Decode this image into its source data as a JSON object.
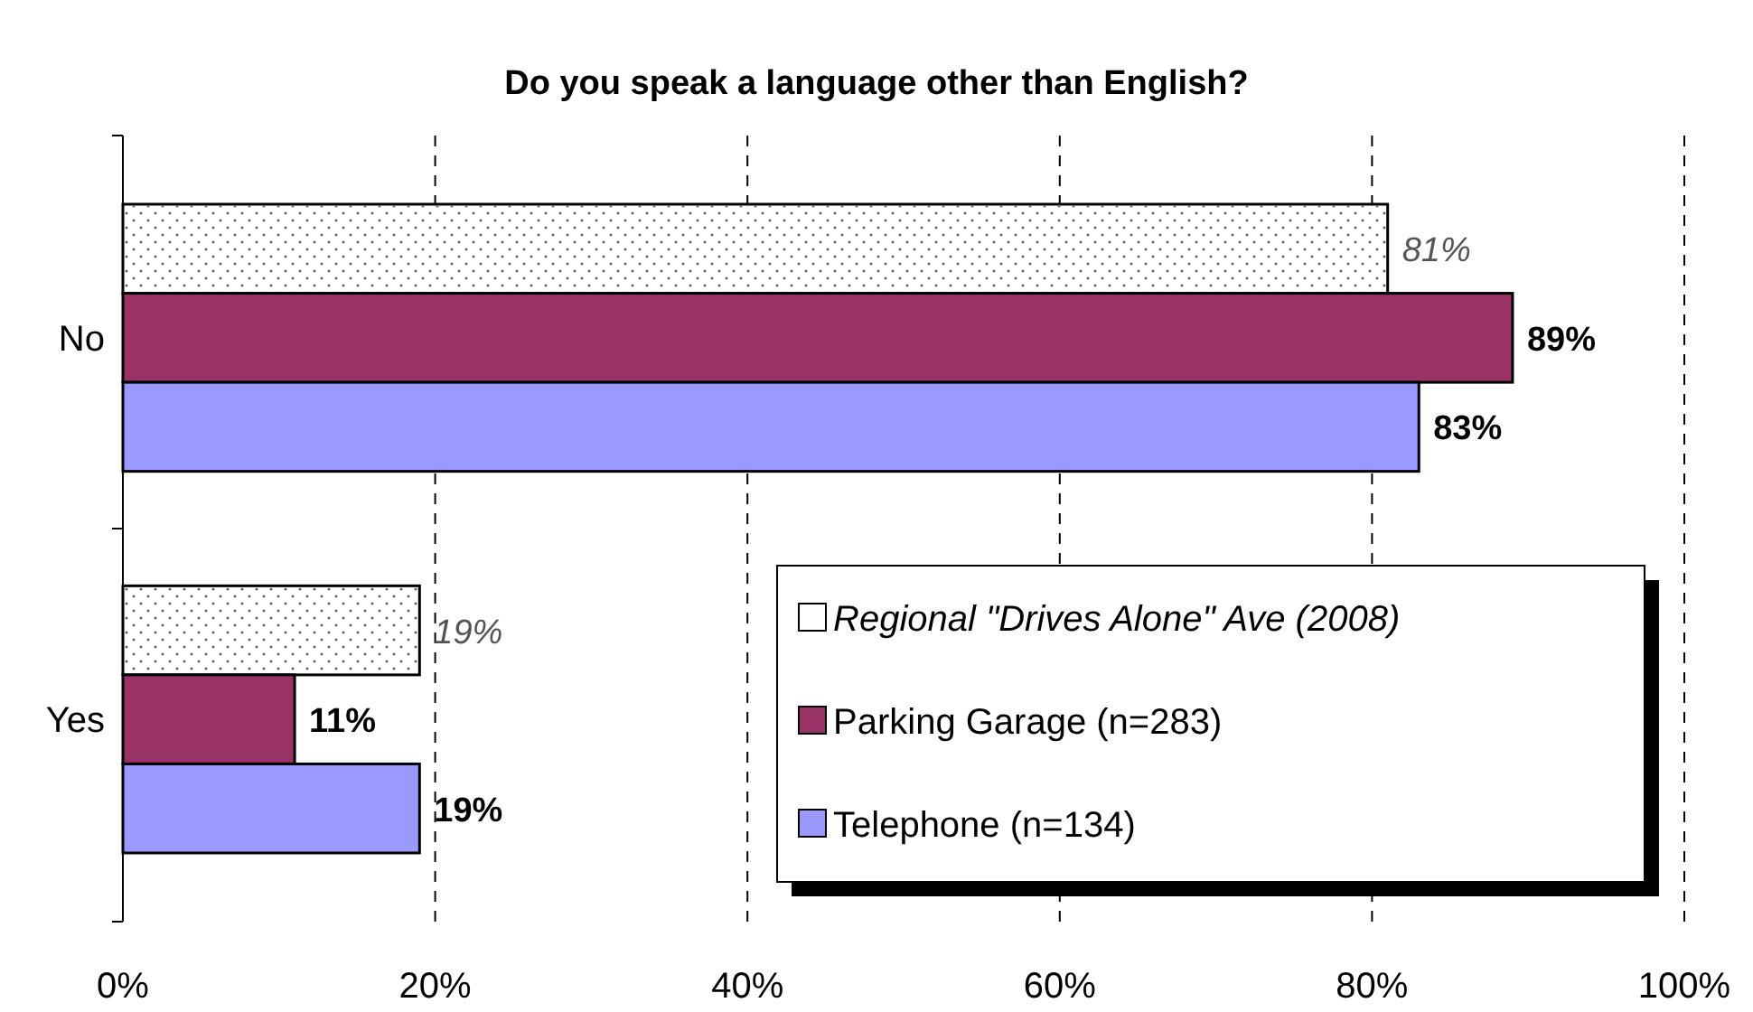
{
  "chart_data": {
    "type": "bar",
    "orientation": "horizontal",
    "title": "Do you speak a language other than English?",
    "categories": [
      "No",
      "Yes"
    ],
    "series": [
      {
        "name": "Regional \"Drives Alone\" Ave (2008)",
        "color": "#ffffff",
        "values": [
          81,
          19
        ],
        "value_labels": [
          "81%",
          "19%"
        ]
      },
      {
        "name": "Parking Garage (n=283)",
        "color": "#993366",
        "values": [
          89,
          11
        ],
        "value_labels": [
          "89%",
          "11%"
        ]
      },
      {
        "name": "Telephone (n=134)",
        "color": "#9999ff",
        "values": [
          83,
          19
        ],
        "value_labels": [
          "83%",
          "19%"
        ]
      }
    ],
    "xlim": [
      0,
      100
    ],
    "xticks": [
      {
        "value": 0,
        "label": "0%"
      },
      {
        "value": 20,
        "label": "20%"
      },
      {
        "value": 40,
        "label": "40%"
      },
      {
        "value": 60,
        "label": "60%"
      },
      {
        "value": 80,
        "label": "80%"
      },
      {
        "value": 100,
        "label": "100%"
      }
    ],
    "grid": "x",
    "legend": "bottom right"
  }
}
